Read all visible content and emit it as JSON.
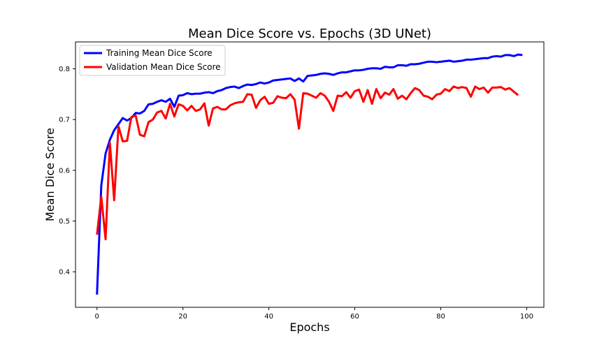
{
  "chart_data": {
    "type": "line",
    "title": "Mean Dice Score vs. Epochs (3D UNet)",
    "xlabel": "Epochs",
    "ylabel": "Mean Dice Score",
    "xlim": [
      -5,
      104
    ],
    "ylim": [
      0.33,
      0.853
    ],
    "xticks": [
      0,
      20,
      40,
      60,
      80,
      100
    ],
    "yticks": [
      0.4,
      0.5,
      0.6,
      0.7,
      0.8
    ],
    "grid": false,
    "legend_position": "top-left",
    "series": [
      {
        "name": "Training Mean Dice Score",
        "color": "#0000ff",
        "x": [
          0,
          1,
          2,
          3,
          4,
          5,
          6,
          7,
          8,
          9,
          10,
          11,
          12,
          13,
          14,
          15,
          16,
          17,
          18,
          19,
          20,
          21,
          22,
          23,
          24,
          25,
          26,
          27,
          28,
          29,
          30,
          31,
          32,
          33,
          34,
          35,
          36,
          37,
          38,
          39,
          40,
          41,
          42,
          43,
          44,
          45,
          46,
          47,
          48,
          49,
          50,
          51,
          52,
          53,
          54,
          55,
          56,
          57,
          58,
          59,
          60,
          61,
          62,
          63,
          64,
          65,
          66,
          67,
          68,
          69,
          70,
          71,
          72,
          73,
          74,
          75,
          76,
          77,
          78,
          79,
          80,
          81,
          82,
          83,
          84,
          85,
          86,
          87,
          88,
          89,
          90,
          91,
          92,
          93,
          94,
          95,
          96,
          97,
          98,
          99
        ],
        "values": [
          0.355,
          0.57,
          0.633,
          0.66,
          0.679,
          0.691,
          0.703,
          0.698,
          0.703,
          0.713,
          0.712,
          0.717,
          0.73,
          0.731,
          0.735,
          0.738,
          0.735,
          0.741,
          0.725,
          0.747,
          0.748,
          0.752,
          0.75,
          0.751,
          0.751,
          0.753,
          0.754,
          0.752,
          0.756,
          0.758,
          0.762,
          0.764,
          0.765,
          0.762,
          0.766,
          0.769,
          0.768,
          0.77,
          0.773,
          0.771,
          0.773,
          0.777,
          0.778,
          0.779,
          0.78,
          0.781,
          0.776,
          0.781,
          0.775,
          0.786,
          0.787,
          0.788,
          0.79,
          0.791,
          0.79,
          0.788,
          0.791,
          0.793,
          0.793,
          0.795,
          0.797,
          0.797,
          0.798,
          0.8,
          0.801,
          0.801,
          0.8,
          0.804,
          0.803,
          0.803,
          0.807,
          0.807,
          0.806,
          0.809,
          0.809,
          0.81,
          0.812,
          0.814,
          0.814,
          0.813,
          0.814,
          0.815,
          0.816,
          0.814,
          0.815,
          0.816,
          0.818,
          0.818,
          0.819,
          0.82,
          0.821,
          0.821,
          0.824,
          0.825,
          0.824,
          0.827,
          0.827,
          0.825,
          0.828,
          0.827
        ]
      },
      {
        "name": "Validation Mean Dice Score",
        "color": "#ff0000",
        "x": [
          0,
          1,
          2,
          3,
          4,
          5,
          6,
          7,
          8,
          9,
          10,
          11,
          12,
          13,
          14,
          15,
          16,
          17,
          18,
          19,
          20,
          21,
          22,
          23,
          24,
          25,
          26,
          27,
          28,
          29,
          30,
          31,
          32,
          33,
          34,
          35,
          36,
          37,
          38,
          39,
          40,
          41,
          42,
          43,
          44,
          45,
          46,
          47,
          48,
          49,
          50,
          51,
          52,
          53,
          54,
          55,
          56,
          57,
          58,
          59,
          60,
          61,
          62,
          63,
          64,
          65,
          66,
          67,
          68,
          69,
          70,
          71,
          72,
          73,
          74,
          75,
          76,
          77,
          78,
          79,
          80,
          81,
          82,
          83,
          84,
          85,
          86,
          87,
          88,
          89,
          90,
          91,
          92,
          93,
          94,
          95,
          96,
          97,
          98
        ],
        "values": [
          0.473,
          0.548,
          0.464,
          0.654,
          0.541,
          0.687,
          0.657,
          0.658,
          0.705,
          0.708,
          0.67,
          0.667,
          0.695,
          0.7,
          0.714,
          0.717,
          0.702,
          0.731,
          0.706,
          0.73,
          0.727,
          0.718,
          0.727,
          0.717,
          0.72,
          0.732,
          0.688,
          0.722,
          0.725,
          0.72,
          0.72,
          0.728,
          0.732,
          0.734,
          0.735,
          0.75,
          0.749,
          0.723,
          0.738,
          0.745,
          0.731,
          0.733,
          0.746,
          0.743,
          0.742,
          0.75,
          0.739,
          0.682,
          0.752,
          0.751,
          0.747,
          0.743,
          0.752,
          0.747,
          0.735,
          0.717,
          0.747,
          0.746,
          0.754,
          0.743,
          0.756,
          0.759,
          0.735,
          0.758,
          0.731,
          0.76,
          0.742,
          0.753,
          0.749,
          0.76,
          0.741,
          0.747,
          0.74,
          0.752,
          0.762,
          0.758,
          0.747,
          0.745,
          0.74,
          0.749,
          0.751,
          0.76,
          0.756,
          0.765,
          0.762,
          0.764,
          0.762,
          0.745,
          0.765,
          0.76,
          0.763,
          0.753,
          0.763,
          0.763,
          0.764,
          0.759,
          0.762,
          0.755,
          0.748
        ]
      }
    ]
  }
}
